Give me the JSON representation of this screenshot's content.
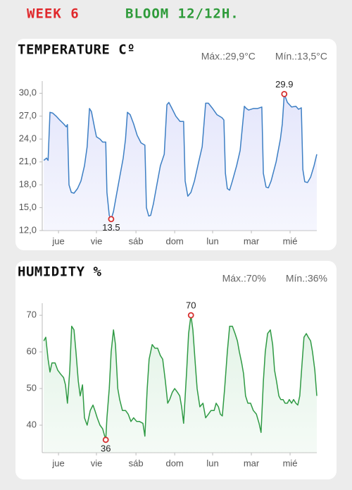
{
  "header": {
    "week": "WEEK 6",
    "stage": "BLOOM 12/12H."
  },
  "chart_data": [
    {
      "type": "line",
      "title": "TEMPERATURE Cº",
      "max_label": "Máx.:29,9°C",
      "min_label": "Mín.:13,5°C",
      "color": "#3d7fc4",
      "fill_color": "#e4e6fb",
      "xlim": [
        0,
        7.09
      ],
      "ylim": [
        12,
        31.6
      ],
      "xticks": [
        {
          "value": 0.42,
          "label": "jue"
        },
        {
          "value": 1.4,
          "label": "vie"
        },
        {
          "value": 2.42,
          "label": "sáb"
        },
        {
          "value": 3.42,
          "label": "dom"
        },
        {
          "value": 4.4,
          "label": "lun"
        },
        {
          "value": 5.4,
          "label": "mar"
        },
        {
          "value": 6.4,
          "label": "mié"
        }
      ],
      "yticks": [
        {
          "value": 12,
          "label": "12,0"
        },
        {
          "value": 15,
          "label": "15,0"
        },
        {
          "value": 18,
          "label": "18,0"
        },
        {
          "value": 21,
          "label": "21,0"
        },
        {
          "value": 24,
          "label": "24,0"
        },
        {
          "value": 27,
          "label": "27,0"
        },
        {
          "value": 30,
          "label": "30,0"
        }
      ],
      "x": [
        0.04,
        0.11,
        0.15,
        0.2,
        0.27,
        0.36,
        0.45,
        0.55,
        0.62,
        0.65,
        0.69,
        0.75,
        0.82,
        0.91,
        1.0,
        1.09,
        1.16,
        1.22,
        1.27,
        1.35,
        1.4,
        1.49,
        1.56,
        1.64,
        1.67,
        1.73,
        1.78,
        1.84,
        1.91,
        2.0,
        2.09,
        2.15,
        2.2,
        2.27,
        2.36,
        2.45,
        2.55,
        2.65,
        2.69,
        2.75,
        2.8,
        2.87,
        2.96,
        3.05,
        3.15,
        3.22,
        3.27,
        3.35,
        3.45,
        3.56,
        3.65,
        3.69,
        3.76,
        3.84,
        3.93,
        4.04,
        4.13,
        4.22,
        4.29,
        4.4,
        4.51,
        4.64,
        4.69,
        4.73,
        4.78,
        4.84,
        4.91,
        5.02,
        5.11,
        5.22,
        5.27,
        5.33,
        5.45,
        5.56,
        5.67,
        5.71,
        5.78,
        5.84,
        5.91,
        6.04,
        6.15,
        6.2,
        6.25,
        6.33,
        6.44,
        6.55,
        6.62,
        6.69,
        6.73,
        6.78,
        6.85,
        6.93,
        7.02,
        7.09
      ],
      "values": [
        21.2,
        21.5,
        21.2,
        27.5,
        27.4,
        27,
        26.5,
        26,
        25.6,
        25.9,
        18,
        17,
        16.9,
        17.5,
        18.5,
        20.5,
        23,
        28,
        27.6,
        25.5,
        24.3,
        24,
        23.6,
        23.6,
        17,
        14,
        13.5,
        14.5,
        16.5,
        19,
        21.5,
        24,
        27.5,
        27.2,
        26,
        24.5,
        23.5,
        23.2,
        15,
        13.9,
        14,
        15.5,
        18,
        20.5,
        22,
        28.5,
        28.8,
        28,
        27,
        26.3,
        26.3,
        18.5,
        16.5,
        17,
        18.5,
        21,
        23,
        28.7,
        28.7,
        28,
        27.2,
        26.8,
        26.5,
        19.5,
        17.5,
        17.3,
        18.5,
        20.5,
        22.5,
        28.3,
        28,
        27.8,
        28,
        28,
        28.2,
        19.5,
        17.7,
        17.6,
        18.5,
        21,
        24,
        26,
        29.9,
        28.8,
        28.2,
        28.3,
        27.9,
        28.1,
        20,
        18.4,
        18.3,
        19,
        20.5,
        22
      ],
      "markers": [
        {
          "x": 1.78,
          "value": 13.5
        },
        {
          "x": 6.25,
          "value": 29.9
        }
      ]
    },
    {
      "type": "line",
      "title": "HUMIDITY %",
      "max_label": "Máx.:70%",
      "min_label": "Mín.:36%",
      "color": "#2f9a44",
      "fill_color": "#e2f3e6",
      "xlim": [
        0,
        7.09
      ],
      "ylim": [
        32.5,
        73.3
      ],
      "xticks": [
        {
          "value": 0.42,
          "label": "jue"
        },
        {
          "value": 1.4,
          "label": "vie"
        },
        {
          "value": 2.42,
          "label": "sáb"
        },
        {
          "value": 3.42,
          "label": "dom"
        },
        {
          "value": 4.4,
          "label": "lun"
        },
        {
          "value": 5.4,
          "label": "mar"
        },
        {
          "value": 6.4,
          "label": "mié"
        }
      ],
      "yticks": [
        40,
        50,
        60,
        70
      ],
      "x": [
        0.04,
        0.09,
        0.15,
        0.2,
        0.25,
        0.33,
        0.4,
        0.47,
        0.55,
        0.6,
        0.65,
        0.71,
        0.76,
        0.82,
        0.87,
        0.93,
        0.98,
        1.04,
        1.09,
        1.16,
        1.24,
        1.31,
        1.36,
        1.42,
        1.49,
        1.56,
        1.64,
        1.67,
        1.73,
        1.78,
        1.84,
        1.89,
        1.95,
        2.0,
        2.07,
        2.15,
        2.22,
        2.29,
        2.36,
        2.44,
        2.51,
        2.6,
        2.65,
        2.71,
        2.76,
        2.84,
        2.91,
        2.98,
        3.05,
        3.11,
        3.18,
        3.24,
        3.29,
        3.36,
        3.42,
        3.49,
        3.55,
        3.6,
        3.65,
        3.73,
        3.78,
        3.84,
        3.89,
        3.95,
        4.0,
        4.07,
        4.15,
        4.22,
        4.29,
        4.36,
        4.44,
        4.49,
        4.55,
        4.6,
        4.65,
        4.71,
        4.78,
        4.84,
        4.91,
        4.98,
        5.04,
        5.09,
        5.15,
        5.2,
        5.25,
        5.31,
        5.38,
        5.45,
        5.53,
        5.6,
        5.65,
        5.71,
        5.76,
        5.82,
        5.89,
        5.95,
        6.0,
        6.05,
        6.11,
        6.16,
        6.22,
        6.27,
        6.33,
        6.38,
        6.44,
        6.49,
        6.55,
        6.6,
        6.65,
        6.71,
        6.76,
        6.82,
        6.87,
        6.93,
        6.98,
        7.04,
        7.09
      ],
      "values": [
        63,
        64,
        58,
        54.5,
        57,
        57,
        55,
        54,
        53,
        51,
        46,
        55,
        67,
        66,
        60,
        52,
        48,
        51,
        42,
        40,
        44,
        45.5,
        44,
        42,
        40,
        39,
        36,
        42,
        50,
        60,
        66,
        62,
        50,
        47,
        44,
        44,
        43,
        41,
        42,
        41,
        41,
        40.5,
        37,
        50,
        58,
        62,
        61,
        61,
        59,
        58,
        52,
        46,
        47,
        49,
        50,
        49,
        48,
        45,
        40.5,
        55,
        65,
        70,
        66,
        57,
        50,
        45,
        46,
        42,
        43,
        44,
        44,
        46,
        45,
        43,
        42.5,
        50,
        60,
        67,
        67,
        65,
        63,
        60,
        57,
        54,
        48,
        46,
        46,
        44,
        43,
        40.5,
        38,
        52,
        60,
        65,
        66,
        62,
        55,
        52,
        48,
        47,
        47,
        46,
        46,
        47,
        46,
        47,
        46,
        45.5,
        48,
        57,
        64,
        65,
        64,
        63,
        60,
        55,
        48
      ],
      "markers": [
        {
          "x": 1.64,
          "value": 36
        },
        {
          "x": 3.84,
          "value": 70
        }
      ]
    }
  ]
}
